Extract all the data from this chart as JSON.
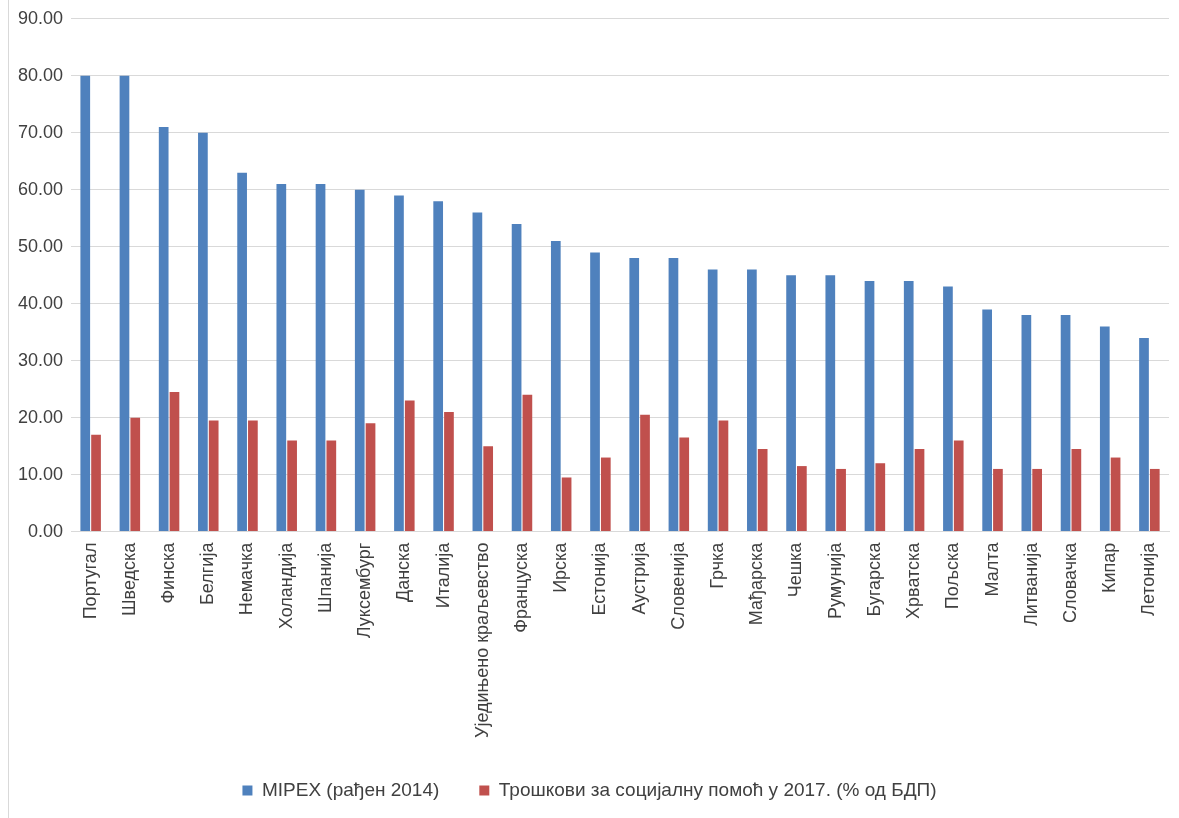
{
  "chart_data": {
    "type": "bar",
    "categories": [
      "Португал",
      "Шведска",
      "Финска",
      "Белгија",
      "Немачка",
      "Холандија",
      "Шпанија",
      "Луксембург",
      "Данска",
      "Италија",
      "Уједињено краљевство",
      "Француска",
      "Ирска",
      "Естонија",
      "Аустрија",
      "Словенија",
      "Грчка",
      "Мађарска",
      "Чешка",
      "Румунија",
      "Бугарска",
      "Хрватска",
      "Пољска",
      "Малта",
      "Литванија",
      "Словачка",
      "Кипар",
      "Летонија"
    ],
    "series": [
      {
        "name": "MIPEX (рађен 2014)",
        "color": "#4f81bd",
        "values": [
          80,
          80,
          71,
          70,
          63,
          61,
          61,
          60,
          59,
          58,
          56,
          54,
          51,
          49,
          48,
          48,
          46,
          46,
          45,
          45,
          44,
          44,
          43,
          39,
          38,
          38,
          36,
          34
        ]
      },
      {
        "name": "Трошкови за социјалну помоћ у 2017. (% од БДП)",
        "color": "#c0504d",
        "values": [
          17,
          20,
          24.5,
          19.5,
          19.5,
          16,
          16,
          19,
          23,
          21,
          15,
          24,
          9.5,
          13,
          20.5,
          16.5,
          19.5,
          14.5,
          11.5,
          11,
          12,
          14.5,
          16,
          11,
          11,
          14.5,
          13,
          11
        ]
      }
    ],
    "ylim": [
      0,
      90
    ],
    "yticks": [
      {
        "value": 0,
        "label": "0.00"
      },
      {
        "value": 10,
        "label": "10.00"
      },
      {
        "value": 20,
        "label": "20.00"
      },
      {
        "value": 30,
        "label": "30.00"
      },
      {
        "value": 40,
        "label": "40.00"
      },
      {
        "value": 50,
        "label": "50.00"
      },
      {
        "value": 60,
        "label": "60.00"
      },
      {
        "value": 70,
        "label": "70.00"
      },
      {
        "value": 80,
        "label": "80.00"
      },
      {
        "value": 90,
        "label": "90.00"
      }
    ],
    "grid": "y",
    "legend": "bottom"
  }
}
